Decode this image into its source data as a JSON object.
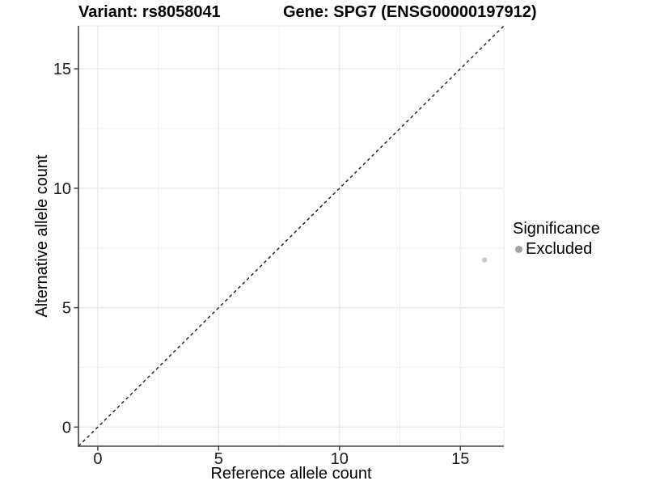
{
  "title": {
    "variant": "Variant: rs8058041",
    "gene": "Gene: SPG7 (ENSG00000197912)"
  },
  "axes": {
    "x_label": "Reference allele count",
    "y_label": "Alternative allele count"
  },
  "legend": {
    "title": "Significance",
    "items": [
      {
        "label": "Excluded",
        "color": "#a3a3a3"
      }
    ]
  },
  "chart_data": {
    "type": "scatter",
    "title": "Variant: rs8058041    Gene: SPG7 (ENSG00000197912)",
    "xlabel": "Reference allele count",
    "ylabel": "Alternative allele count",
    "xlim": [
      -0.8,
      16.8
    ],
    "ylim": [
      -0.8,
      16.8
    ],
    "x_ticks": [
      0,
      5,
      10,
      15
    ],
    "y_ticks": [
      0,
      5,
      10,
      15
    ],
    "x_minor_ticks": [
      2.5,
      7.5,
      12.5
    ],
    "y_minor_ticks": [
      2.5,
      7.5,
      12.5
    ],
    "grid": true,
    "legend_position": "right-middle",
    "reference_line": {
      "type": "identity y=x",
      "style": "dashed",
      "color": "#1a1a1a"
    },
    "series": [
      {
        "name": "Excluded",
        "color": "#c9c9c9",
        "point_radius": 3.2,
        "points": [
          {
            "x": 16,
            "y": 7
          }
        ]
      }
    ]
  },
  "colors": {
    "background": "#ffffff",
    "axis_line": "#404040",
    "grid_major": "#e7e7e7",
    "grid_minor": "#efefef",
    "tick_label": "#1a1a1a",
    "point": "#c9c9c9",
    "legend_key": "#a3a3a3"
  }
}
